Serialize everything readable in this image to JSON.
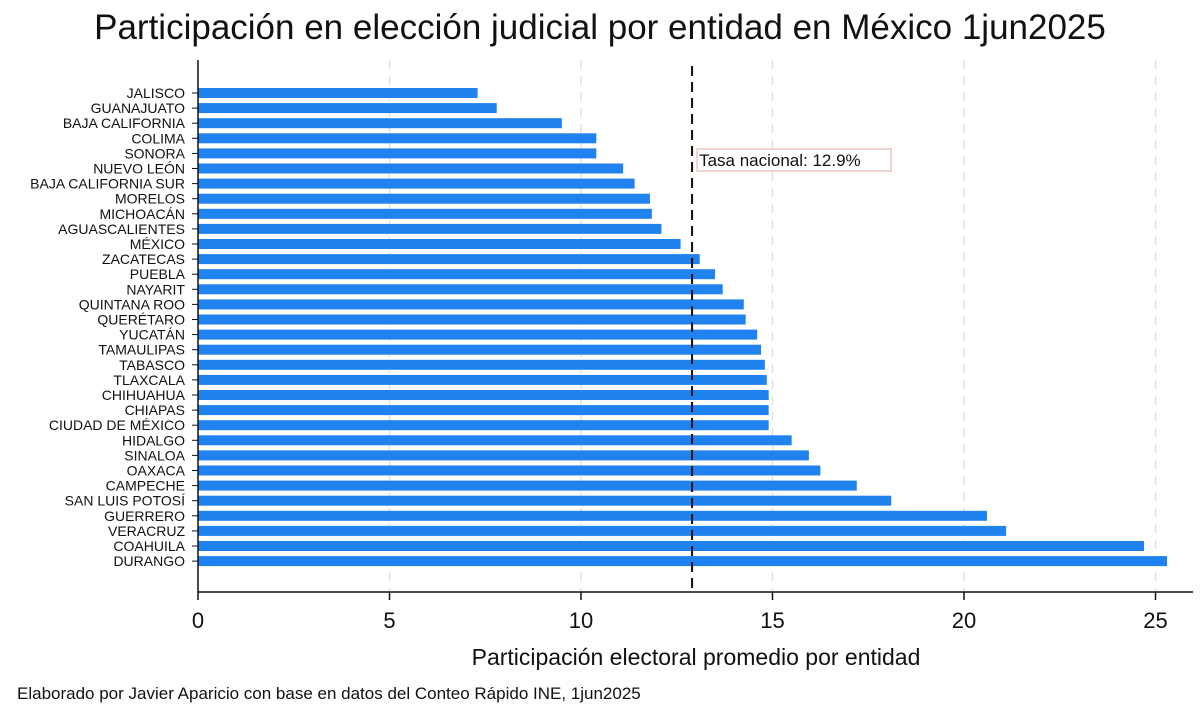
{
  "chart_data": {
    "type": "bar",
    "orientation": "horizontal",
    "title": "Participación en elección judicial por entidad en México 1jun2025",
    "xlabel": "Participación electoral promedio por entidad",
    "ylabel": "",
    "xlim": [
      0,
      26
    ],
    "xticks": [
      0,
      5,
      10,
      15,
      20,
      25
    ],
    "grid": true,
    "categories": [
      "JALISCO",
      "GUANAJUATO",
      "BAJA CALIFORNIA",
      "COLIMA",
      "SONORA",
      "NUEVO LEÓN",
      "BAJA CALIFORNIA SUR",
      "MORELOS",
      "MICHOACÁN",
      "AGUASCALIENTES",
      "MÉXICO",
      "ZACATECAS",
      "PUEBLA",
      "NAYARIT",
      "QUINTANA ROO",
      "QUERÉTARO",
      "YUCATÁN",
      "TAMAULIPAS",
      "TABASCO",
      "TLAXCALA",
      "CHIHUAHUA",
      "CHIAPAS",
      "CIUDAD DE MÉXICO",
      "HIDALGO",
      "SINALOA",
      "OAXACA",
      "CAMPECHE",
      "SAN LUIS POTOSÍ",
      "GUERRERO",
      "VERACRUZ",
      "COAHUILA",
      "DURANGO"
    ],
    "values": [
      7.3,
      7.8,
      9.5,
      10.4,
      10.4,
      11.1,
      11.4,
      11.8,
      11.85,
      12.1,
      12.6,
      13.1,
      13.5,
      13.7,
      14.25,
      14.3,
      14.6,
      14.7,
      14.8,
      14.85,
      14.9,
      14.9,
      14.9,
      15.5,
      15.95,
      16.25,
      17.2,
      18.1,
      20.6,
      21.1,
      24.7,
      25.3
    ],
    "reference_line": {
      "value": 12.9,
      "label": "Tasa nacional: 12.9%"
    },
    "bar_color": "#1f82ee",
    "source_note": "Elaborado por Javier Aparicio con base en datos del Conteo Rápido INE, 1jun2025"
  }
}
